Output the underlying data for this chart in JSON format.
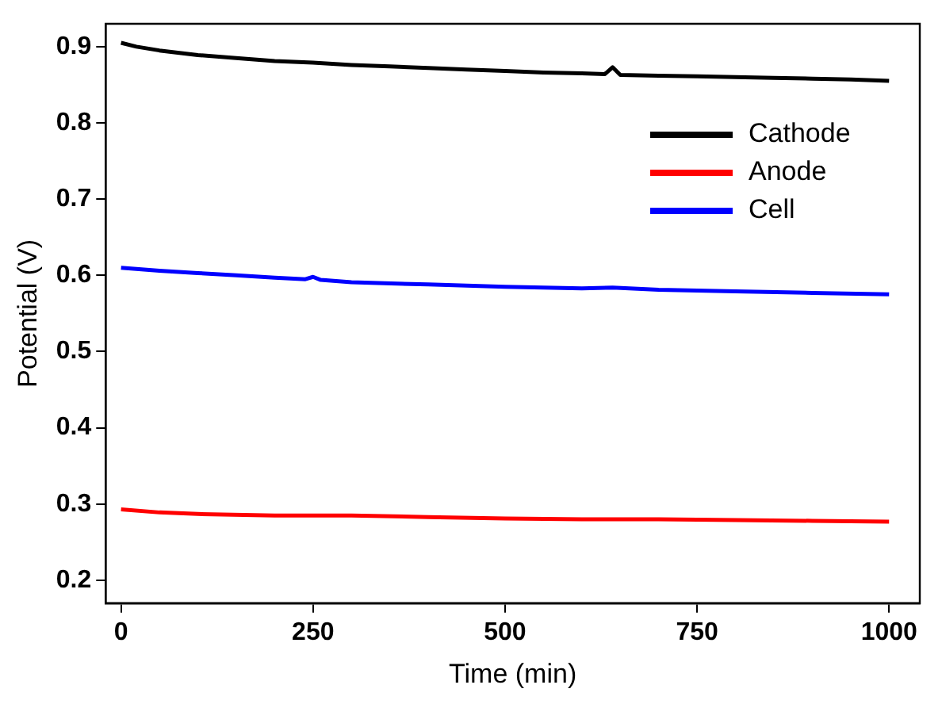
{
  "chart_data": {
    "type": "line",
    "xlabel": "Time (min)",
    "ylabel": "Potential (V)",
    "xlim": [
      -20,
      1040
    ],
    "xticks": [
      0,
      250,
      500,
      750,
      1000
    ],
    "ylim": [
      0.17,
      0.93
    ],
    "yticks": [
      0.2,
      0.3,
      0.4,
      0.5,
      0.6,
      0.7,
      0.8,
      0.9
    ],
    "legend": "top right",
    "grid": false,
    "marker": "none",
    "line_style": "solid",
    "series": [
      {
        "name": "Cathode",
        "color": "#000000",
        "x": [
          0,
          20,
          50,
          100,
          150,
          200,
          250,
          300,
          350,
          400,
          450,
          500,
          550,
          600,
          630,
          640,
          650,
          700,
          750,
          800,
          850,
          900,
          950,
          1000
        ],
        "values": [
          0.905,
          0.9,
          0.895,
          0.889,
          0.885,
          0.881,
          0.879,
          0.876,
          0.874,
          0.872,
          0.87,
          0.868,
          0.866,
          0.865,
          0.864,
          0.873,
          0.863,
          0.862,
          0.861,
          0.86,
          0.859,
          0.858,
          0.857,
          0.855
        ]
      },
      {
        "name": "Anode",
        "color": "#ff0000",
        "x": [
          0,
          50,
          100,
          200,
          300,
          400,
          500,
          600,
          700,
          800,
          900,
          1000
        ],
        "values": [
          0.293,
          0.289,
          0.287,
          0.285,
          0.285,
          0.283,
          0.281,
          0.28,
          0.28,
          0.279,
          0.278,
          0.277
        ]
      },
      {
        "name": "Cell",
        "color": "#0000ff",
        "x": [
          0,
          50,
          100,
          150,
          200,
          240,
          250,
          260,
          300,
          400,
          500,
          600,
          640,
          700,
          800,
          900,
          1000
        ],
        "values": [
          0.61,
          0.606,
          0.603,
          0.6,
          0.597,
          0.595,
          0.598,
          0.594,
          0.591,
          0.588,
          0.585,
          0.583,
          0.584,
          0.581,
          0.579,
          0.577,
          0.575
        ]
      }
    ]
  }
}
